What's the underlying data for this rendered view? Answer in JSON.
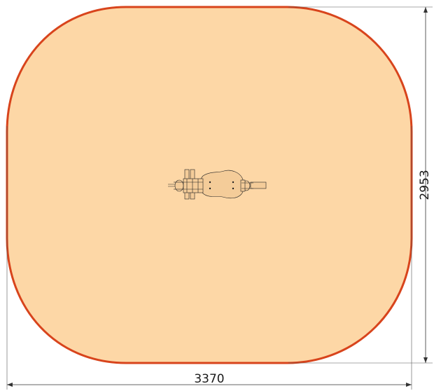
{
  "dimensions": {
    "width_label": "3370",
    "height_label": "2953"
  },
  "colors": {
    "safety_zone_fill": "#fdd7a6",
    "safety_zone_stroke": "#d8441c",
    "equipment_fill": "#f4cc99",
    "line": "#333333"
  },
  "icons": {
    "equipment": "playground-equipment-top-view-icon"
  }
}
